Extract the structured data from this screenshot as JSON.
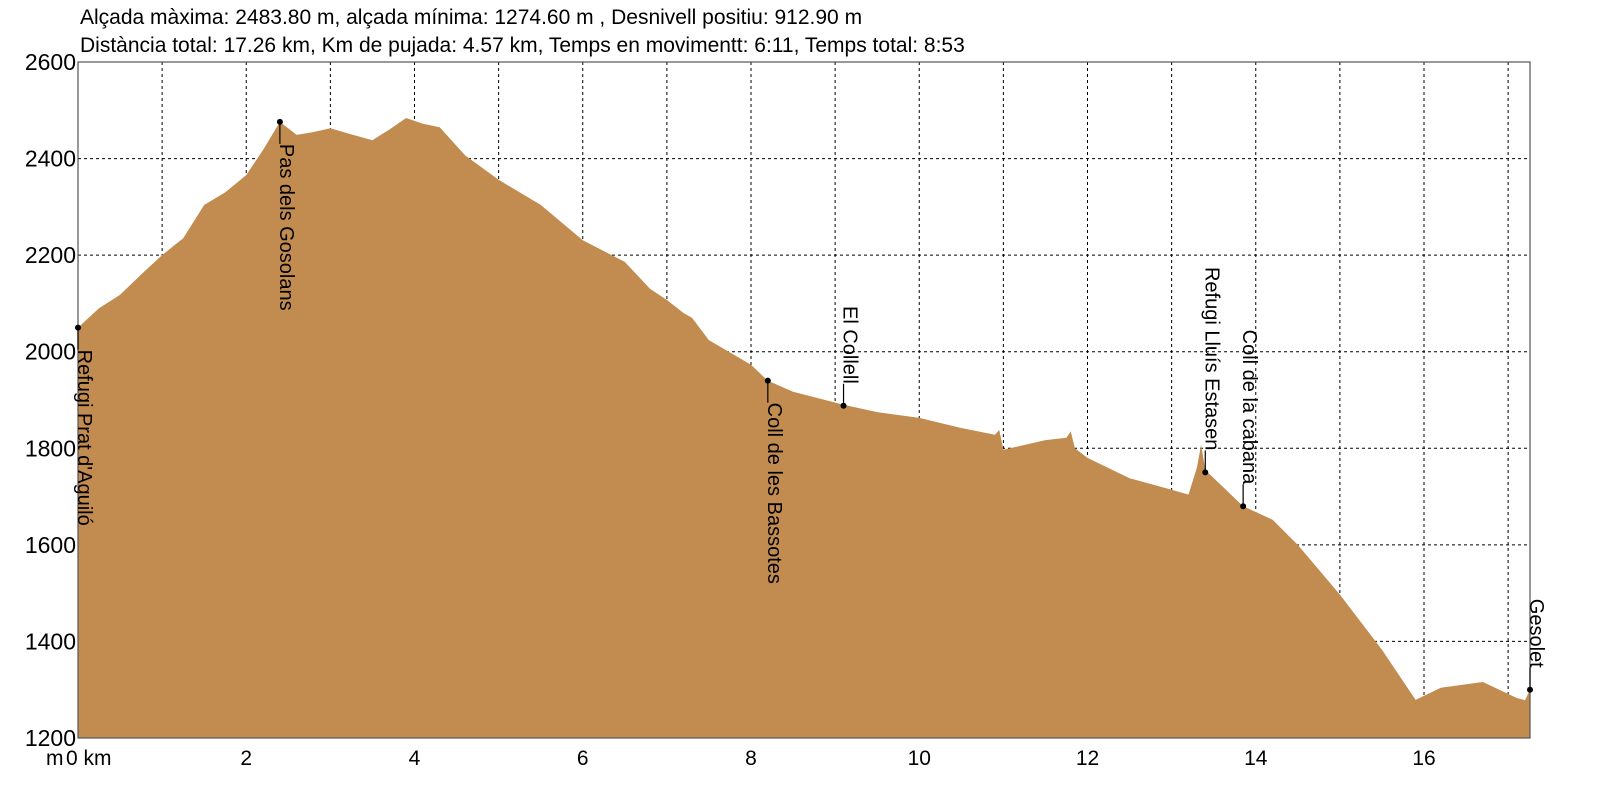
{
  "chart_data": {
    "type": "area",
    "title_lines": [
      "Alçada màxima: 2483.80 m, alçada mínima: 1274.60 m , Desnivell positiu: 912.90 m",
      "Distància total: 17.26 km, Km de pujada: 4.57 km, Temps en movimentt: 6:11, Temps total: 8:53"
    ],
    "xlabel": "km",
    "ylabel": "m",
    "xlim": [
      0,
      17.26
    ],
    "ylim": [
      1200,
      2600
    ],
    "x_ticks": [
      0,
      2,
      4,
      6,
      8,
      10,
      12,
      14,
      16
    ],
    "x_tick_labels": [
      "0 km",
      "2",
      "4",
      "6",
      "8",
      "10",
      "12",
      "14",
      "16"
    ],
    "y_ticks": [
      1200,
      1400,
      1600,
      1800,
      2000,
      2200,
      2400,
      2600
    ],
    "y_tick_labels": [
      "1200",
      "1400",
      "1600",
      "1800",
      "2000",
      "2200",
      "2400",
      "2600"
    ],
    "grid": true,
    "fill_color": "#C28C50",
    "x": [
      0,
      0.25,
      0.5,
      0.75,
      1.0,
      1.25,
      1.5,
      1.75,
      2.0,
      2.2,
      2.4,
      2.6,
      2.8,
      3.0,
      3.25,
      3.5,
      3.7,
      3.9,
      4.1,
      4.3,
      4.6,
      5.0,
      5.5,
      6.0,
      6.5,
      6.8,
      7.0,
      7.2,
      7.3,
      7.5,
      8.0,
      8.2,
      8.5,
      9.1,
      9.5,
      10.0,
      10.5,
      10.9,
      10.95,
      11.0,
      11.5,
      11.75,
      11.8,
      11.85,
      12.0,
      12.5,
      13.0,
      13.2,
      13.3,
      13.35,
      13.4,
      13.85,
      14.2,
      14.5,
      15.0,
      15.5,
      15.9,
      16.2,
      16.7,
      17.1,
      17.2,
      17.26
    ],
    "y": [
      2050,
      2090,
      2118,
      2160,
      2200,
      2235,
      2304,
      2330,
      2366,
      2418,
      2476,
      2449,
      2455,
      2463,
      2450,
      2438,
      2460,
      2484,
      2472,
      2465,
      2407,
      2356,
      2304,
      2231,
      2186,
      2130,
      2107,
      2080,
      2070,
      2024,
      1973,
      1940,
      1917,
      1890,
      1875,
      1863,
      1842,
      1828,
      1838,
      1797,
      1817,
      1822,
      1835,
      1800,
      1780,
      1738,
      1714,
      1704,
      1760,
      1807,
      1755,
      1680,
      1652,
      1600,
      1497,
      1383,
      1279,
      1304,
      1316,
      1283,
      1278,
      1300
    ],
    "waypoints": [
      {
        "name": "Refugi Prat d'Aguiló",
        "km": 0,
        "elev": 2050,
        "label_side": "below"
      },
      {
        "name": "Pas dels Gosolans",
        "km": 2.4,
        "elev": 2476,
        "label_side": "below"
      },
      {
        "name": "Coll de les Bassotes",
        "km": 8.2,
        "elev": 1940,
        "label_side": "below"
      },
      {
        "name": "El Collell",
        "km": 9.1,
        "elev": 1888,
        "label_side": "above"
      },
      {
        "name": "Refugi Lluís Estasen",
        "km": 13.4,
        "elev": 1750,
        "label_side": "above"
      },
      {
        "name": "Coll de la cabana",
        "km": 13.85,
        "elev": 1680,
        "label_side": "above"
      },
      {
        "name": "Gesolet",
        "km": 17.26,
        "elev": 1300,
        "label_side": "above"
      }
    ]
  }
}
